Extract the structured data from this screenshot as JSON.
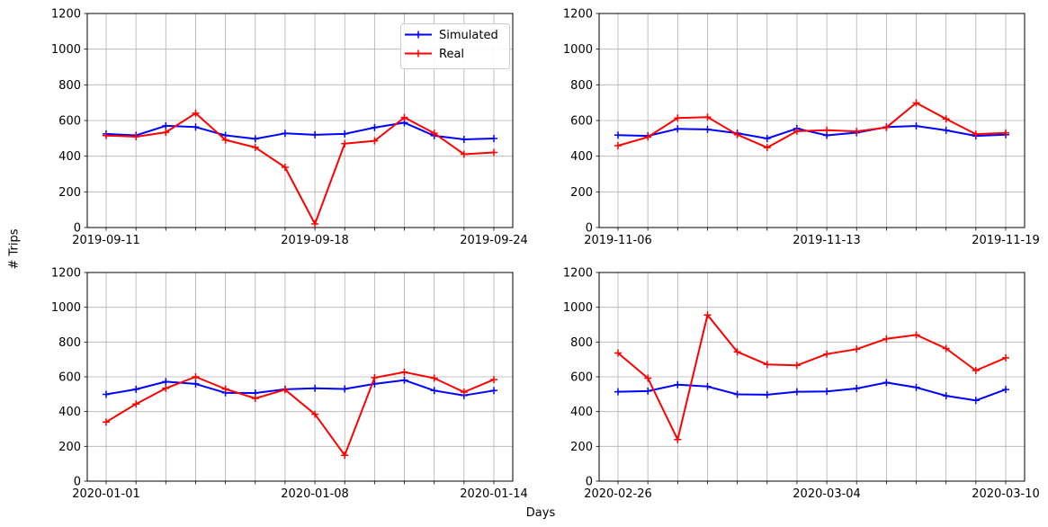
{
  "figure": {
    "ylabel": "# Trips",
    "xlabel": "Days",
    "background": "#ffffff",
    "grid_color": "#b0b0b0",
    "spine_color": "#000000",
    "text_color": "#000000"
  },
  "legend": {
    "position": "upper-right-of-first-subplot",
    "entries": [
      {
        "label": "Simulated",
        "color": "#0000ff",
        "marker": "+"
      },
      {
        "label": "Real",
        "color": "#ff0000",
        "marker": "+"
      }
    ]
  },
  "chart_data": [
    {
      "type": "line",
      "title": "",
      "grid": true,
      "legend": true,
      "ylim": [
        0,
        1200
      ],
      "yticks": [
        0,
        200,
        400,
        600,
        800,
        1000,
        1200
      ],
      "x": [
        "2019-09-11",
        "2019-09-12",
        "2019-09-13",
        "2019-09-14",
        "2019-09-15",
        "2019-09-16",
        "2019-09-17",
        "2019-09-18",
        "2019-09-19",
        "2019-09-20",
        "2019-09-21",
        "2019-09-22",
        "2019-09-23",
        "2019-09-24"
      ],
      "xtick_labels": [
        "2019-09-11",
        "2019-09-18",
        "2019-09-24"
      ],
      "xtick_positions": [
        0,
        7,
        13
      ],
      "series": [
        {
          "name": "Simulated",
          "color": "#0000ff",
          "marker": "+",
          "values": [
            525,
            517,
            570,
            563,
            517,
            497,
            528,
            520,
            525,
            560,
            588,
            515,
            494,
            499
          ]
        },
        {
          "name": "Real",
          "color": "#ff0000",
          "marker": "+",
          "values": [
            516,
            509,
            534,
            641,
            491,
            449,
            338,
            20,
            470,
            486,
            617,
            529,
            411,
            421
          ]
        }
      ]
    },
    {
      "type": "line",
      "title": "",
      "grid": true,
      "legend": false,
      "ylim": [
        0,
        1200
      ],
      "yticks": [
        0,
        200,
        400,
        600,
        800,
        1000,
        1200
      ],
      "x": [
        "2019-11-06",
        "2019-11-07",
        "2019-11-08",
        "2019-11-09",
        "2019-11-10",
        "2019-11-11",
        "2019-11-12",
        "2019-11-13",
        "2019-11-14",
        "2019-11-15",
        "2019-11-16",
        "2019-11-17",
        "2019-11-18",
        "2019-11-19"
      ],
      "xtick_labels": [
        "2019-11-06",
        "2019-11-13",
        "2019-11-19"
      ],
      "xtick_positions": [
        0,
        7,
        13
      ],
      "series": [
        {
          "name": "Simulated",
          "color": "#0000ff",
          "marker": "+",
          "values": [
            518,
            514,
            553,
            550,
            529,
            499,
            555,
            517,
            532,
            563,
            569,
            545,
            514,
            521
          ]
        },
        {
          "name": "Real",
          "color": "#ff0000",
          "marker": "+",
          "values": [
            459,
            507,
            614,
            619,
            521,
            448,
            540,
            546,
            539,
            561,
            699,
            609,
            524,
            531
          ]
        }
      ]
    },
    {
      "type": "line",
      "title": "",
      "grid": true,
      "legend": false,
      "ylim": [
        0,
        1200
      ],
      "yticks": [
        0,
        200,
        400,
        600,
        800,
        1000,
        1200
      ],
      "x": [
        "2020-01-01",
        "2020-01-02",
        "2020-01-03",
        "2020-01-04",
        "2020-01-05",
        "2020-01-06",
        "2020-01-07",
        "2020-01-08",
        "2020-01-09",
        "2020-01-10",
        "2020-01-11",
        "2020-01-12",
        "2020-01-13",
        "2020-01-14"
      ],
      "xtick_labels": [
        "2020-01-01",
        "2020-01-08",
        "2020-01-14"
      ],
      "xtick_positions": [
        0,
        7,
        13
      ],
      "series": [
        {
          "name": "Simulated",
          "color": "#0000ff",
          "marker": "+",
          "values": [
            499,
            528,
            572,
            559,
            508,
            507,
            528,
            534,
            530,
            559,
            581,
            521,
            493,
            521
          ]
        },
        {
          "name": "Real",
          "color": "#ff0000",
          "marker": "+",
          "values": [
            340,
            444,
            534,
            600,
            530,
            476,
            526,
            385,
            149,
            595,
            627,
            592,
            512,
            584
          ]
        }
      ]
    },
    {
      "type": "line",
      "title": "",
      "grid": true,
      "legend": false,
      "ylim": [
        0,
        1200
      ],
      "yticks": [
        0,
        200,
        400,
        600,
        800,
        1000,
        1200
      ],
      "x": [
        "2020-02-26",
        "2020-02-27",
        "2020-02-28",
        "2020-02-29",
        "2020-03-01",
        "2020-03-02",
        "2020-03-03",
        "2020-03-04",
        "2020-03-05",
        "2020-03-06",
        "2020-03-07",
        "2020-03-08",
        "2020-03-09",
        "2020-03-10"
      ],
      "xtick_labels": [
        "2020-02-26",
        "2020-03-04",
        "2020-03-10"
      ],
      "xtick_positions": [
        0,
        7,
        13
      ],
      "series": [
        {
          "name": "Simulated",
          "color": "#0000ff",
          "marker": "+",
          "values": [
            514,
            518,
            555,
            544,
            499,
            497,
            514,
            516,
            533,
            567,
            539,
            491,
            464,
            527
          ]
        },
        {
          "name": "Real",
          "color": "#ff0000",
          "marker": "+",
          "values": [
            737,
            592,
            239,
            956,
            744,
            671,
            666,
            731,
            759,
            819,
            841,
            763,
            636,
            709
          ]
        }
      ]
    }
  ]
}
